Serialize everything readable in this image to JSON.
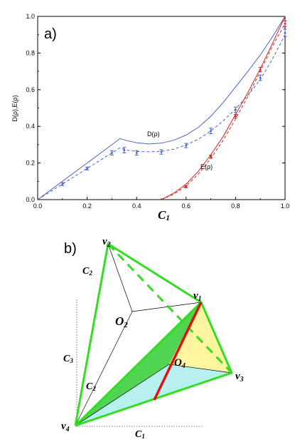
{
  "panel_a": {
    "label": "a)",
    "ylabel": "D(ρ),E(ρ)",
    "xlabel_main": "C",
    "xlabel_sub": "1",
    "curve_label_D": "D(ρ)",
    "curve_label_E": "E(ρ)"
  },
  "chart_data": {
    "type": "line",
    "xlabel": "C1",
    "ylabel": "D(ρ),E(ρ)",
    "xlim": [
      0,
      1
    ],
    "ylim": [
      0,
      1
    ],
    "x_ticks": [
      "0.0",
      "0.2",
      "0.4",
      "0.6",
      "0.8",
      "1.0"
    ],
    "y_ticks": [
      "0.0",
      "0.2",
      "0.4",
      "0.6",
      "0.8",
      "1.0"
    ],
    "grid": false,
    "colors": {
      "D": "#4a64c8",
      "E": "#d02828"
    },
    "series": [
      {
        "name": "D(ρ)",
        "style": "solid",
        "color": "#4a64c8",
        "x": [
          0,
          0.1,
          0.2,
          0.3,
          0.333,
          0.36,
          0.4,
          0.45,
          0.5,
          0.55,
          0.6,
          0.65,
          0.7,
          0.75,
          0.8,
          0.85,
          0.9,
          0.95,
          1.0
        ],
        "y": [
          0,
          0.1,
          0.2,
          0.3,
          0.333,
          0.322,
          0.31,
          0.304,
          0.308,
          0.324,
          0.352,
          0.395,
          0.455,
          0.53,
          0.615,
          0.7,
          0.79,
          0.89,
          1.0
        ]
      },
      {
        "style": "dashed",
        "color": "#4a64c8",
        "x": [
          0,
          0.1,
          0.2,
          0.3,
          0.333,
          0.36,
          0.4,
          0.45,
          0.5,
          0.55,
          0.6,
          0.65,
          0.7,
          0.75,
          0.8,
          0.85,
          0.9,
          0.95,
          1.0
        ],
        "y": [
          0,
          0.085,
          0.17,
          0.255,
          0.283,
          0.27,
          0.263,
          0.261,
          0.263,
          0.275,
          0.298,
          0.33,
          0.375,
          0.43,
          0.495,
          0.57,
          0.655,
          0.77,
          0.9
        ]
      },
      {
        "name": "E(ρ)",
        "style": "solid",
        "color": "#d02828",
        "x": [
          0.5,
          0.55,
          0.6,
          0.65,
          0.7,
          0.75,
          0.8,
          0.85,
          0.9,
          0.95,
          1.0
        ],
        "y": [
          0,
          0.035,
          0.085,
          0.155,
          0.245,
          0.345,
          0.465,
          0.585,
          0.715,
          0.855,
          1.0
        ]
      },
      {
        "style": "dashed",
        "color": "#d02828",
        "x": [
          0.5,
          0.55,
          0.6,
          0.65,
          0.7,
          0.75,
          0.8,
          0.85,
          0.9,
          0.95,
          1.0
        ],
        "y": [
          0,
          0.03,
          0.075,
          0.14,
          0.225,
          0.325,
          0.44,
          0.565,
          0.7,
          0.84,
          0.96
        ]
      }
    ],
    "error_points": [
      {
        "series": "D",
        "x": 0.1,
        "y": 0.085,
        "err": 0.008
      },
      {
        "series": "D",
        "x": 0.2,
        "y": 0.17,
        "err": 0.008
      },
      {
        "series": "D",
        "x": 0.3,
        "y": 0.255,
        "err": 0.012
      },
      {
        "series": "D",
        "x": 0.35,
        "y": 0.27,
        "err": 0.015
      },
      {
        "series": "D",
        "x": 0.4,
        "y": 0.255,
        "err": 0.012
      },
      {
        "series": "D",
        "x": 0.5,
        "y": 0.26,
        "err": 0.012
      },
      {
        "series": "D",
        "x": 0.6,
        "y": 0.295,
        "err": 0.012
      },
      {
        "series": "D",
        "x": 0.7,
        "y": 0.375,
        "err": 0.015
      },
      {
        "series": "D",
        "x": 0.8,
        "y": 0.49,
        "err": 0.015
      },
      {
        "series": "D",
        "x": 0.9,
        "y": 0.665,
        "err": 0.015
      },
      {
        "series": "D",
        "x": 1.0,
        "y": 0.91,
        "err": 0.02
      },
      {
        "series": "E",
        "x": 0.6,
        "y": 0.07,
        "err": 0.006
      },
      {
        "series": "E",
        "x": 0.7,
        "y": 0.235,
        "err": 0.008
      },
      {
        "series": "E",
        "x": 0.8,
        "y": 0.455,
        "err": 0.01
      },
      {
        "series": "E",
        "x": 0.9,
        "y": 0.71,
        "err": 0.012
      },
      {
        "series": "E",
        "x": 1.0,
        "y": 0.96,
        "err": 0.015
      }
    ]
  },
  "panel_b": {
    "label": "b)",
    "vertex_v1": "v",
    "vertex_v1_sub": "1",
    "vertex_v2": "v",
    "vertex_v2_sub": "2",
    "vertex_v3": "v",
    "vertex_v3_sub": "3",
    "vertex_v4": "v",
    "vertex_v4_sub": "4",
    "o2_main": "O",
    "o2_sub": "2",
    "o4_main": "O",
    "o4_sub": "4",
    "axis_c1_main": "C",
    "axis_c1_sub": "1",
    "axis_c2_main": "C",
    "axis_c2_sub": "2",
    "axis_c3_main": "C",
    "axis_c3_sub": "3",
    "inner_c2_main": "C",
    "inner_c2_sub": "2",
    "colors": {
      "edges": "#33dd22",
      "red_line": "#e01010",
      "green_face": "#33cc33",
      "yellow_face": "#fff4a0",
      "cyan_face": "#b8f0f0"
    }
  }
}
